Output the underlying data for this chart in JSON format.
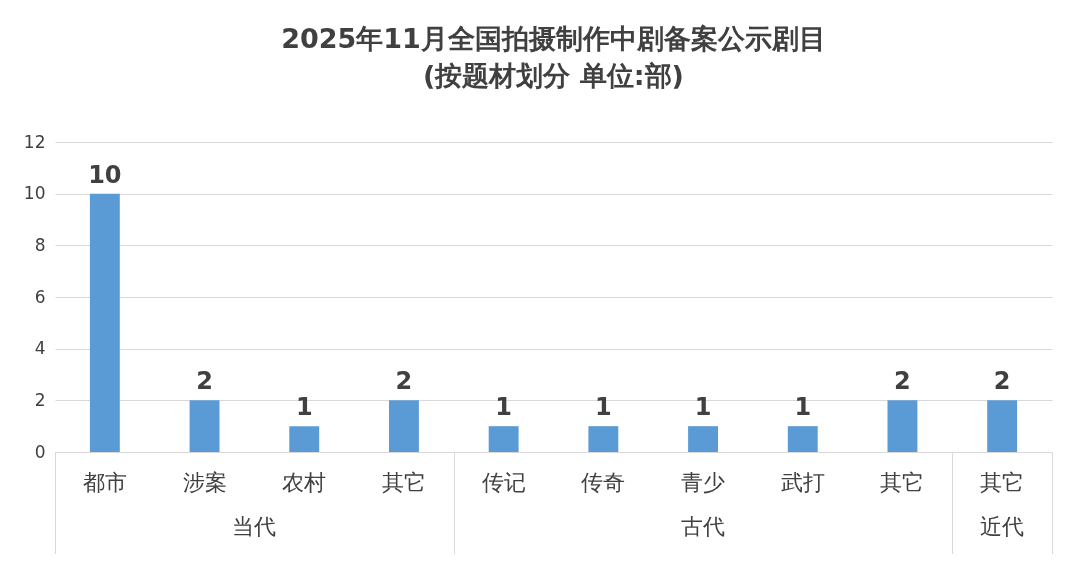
{
  "chart_data": {
    "type": "bar",
    "title": "2025年11月全国拍摄制作中剧备案公示剧目",
    "subtitle": "(按题材划分 单位:部)",
    "categories": [
      "都市",
      "涉案",
      "农村",
      "其它",
      "传记",
      "传奇",
      "青少",
      "武打",
      "其它",
      "其它"
    ],
    "values": [
      10,
      2,
      1,
      2,
      1,
      1,
      1,
      1,
      2,
      2
    ],
    "color": "#5b9bd5",
    "ylim": [
      0,
      12
    ],
    "yticks": [
      0,
      2,
      4,
      6,
      8,
      10,
      12
    ],
    "grid": "y",
    "data_labels": true,
    "annotations": [
      "当代",
      "古代",
      "近代"
    ]
  }
}
